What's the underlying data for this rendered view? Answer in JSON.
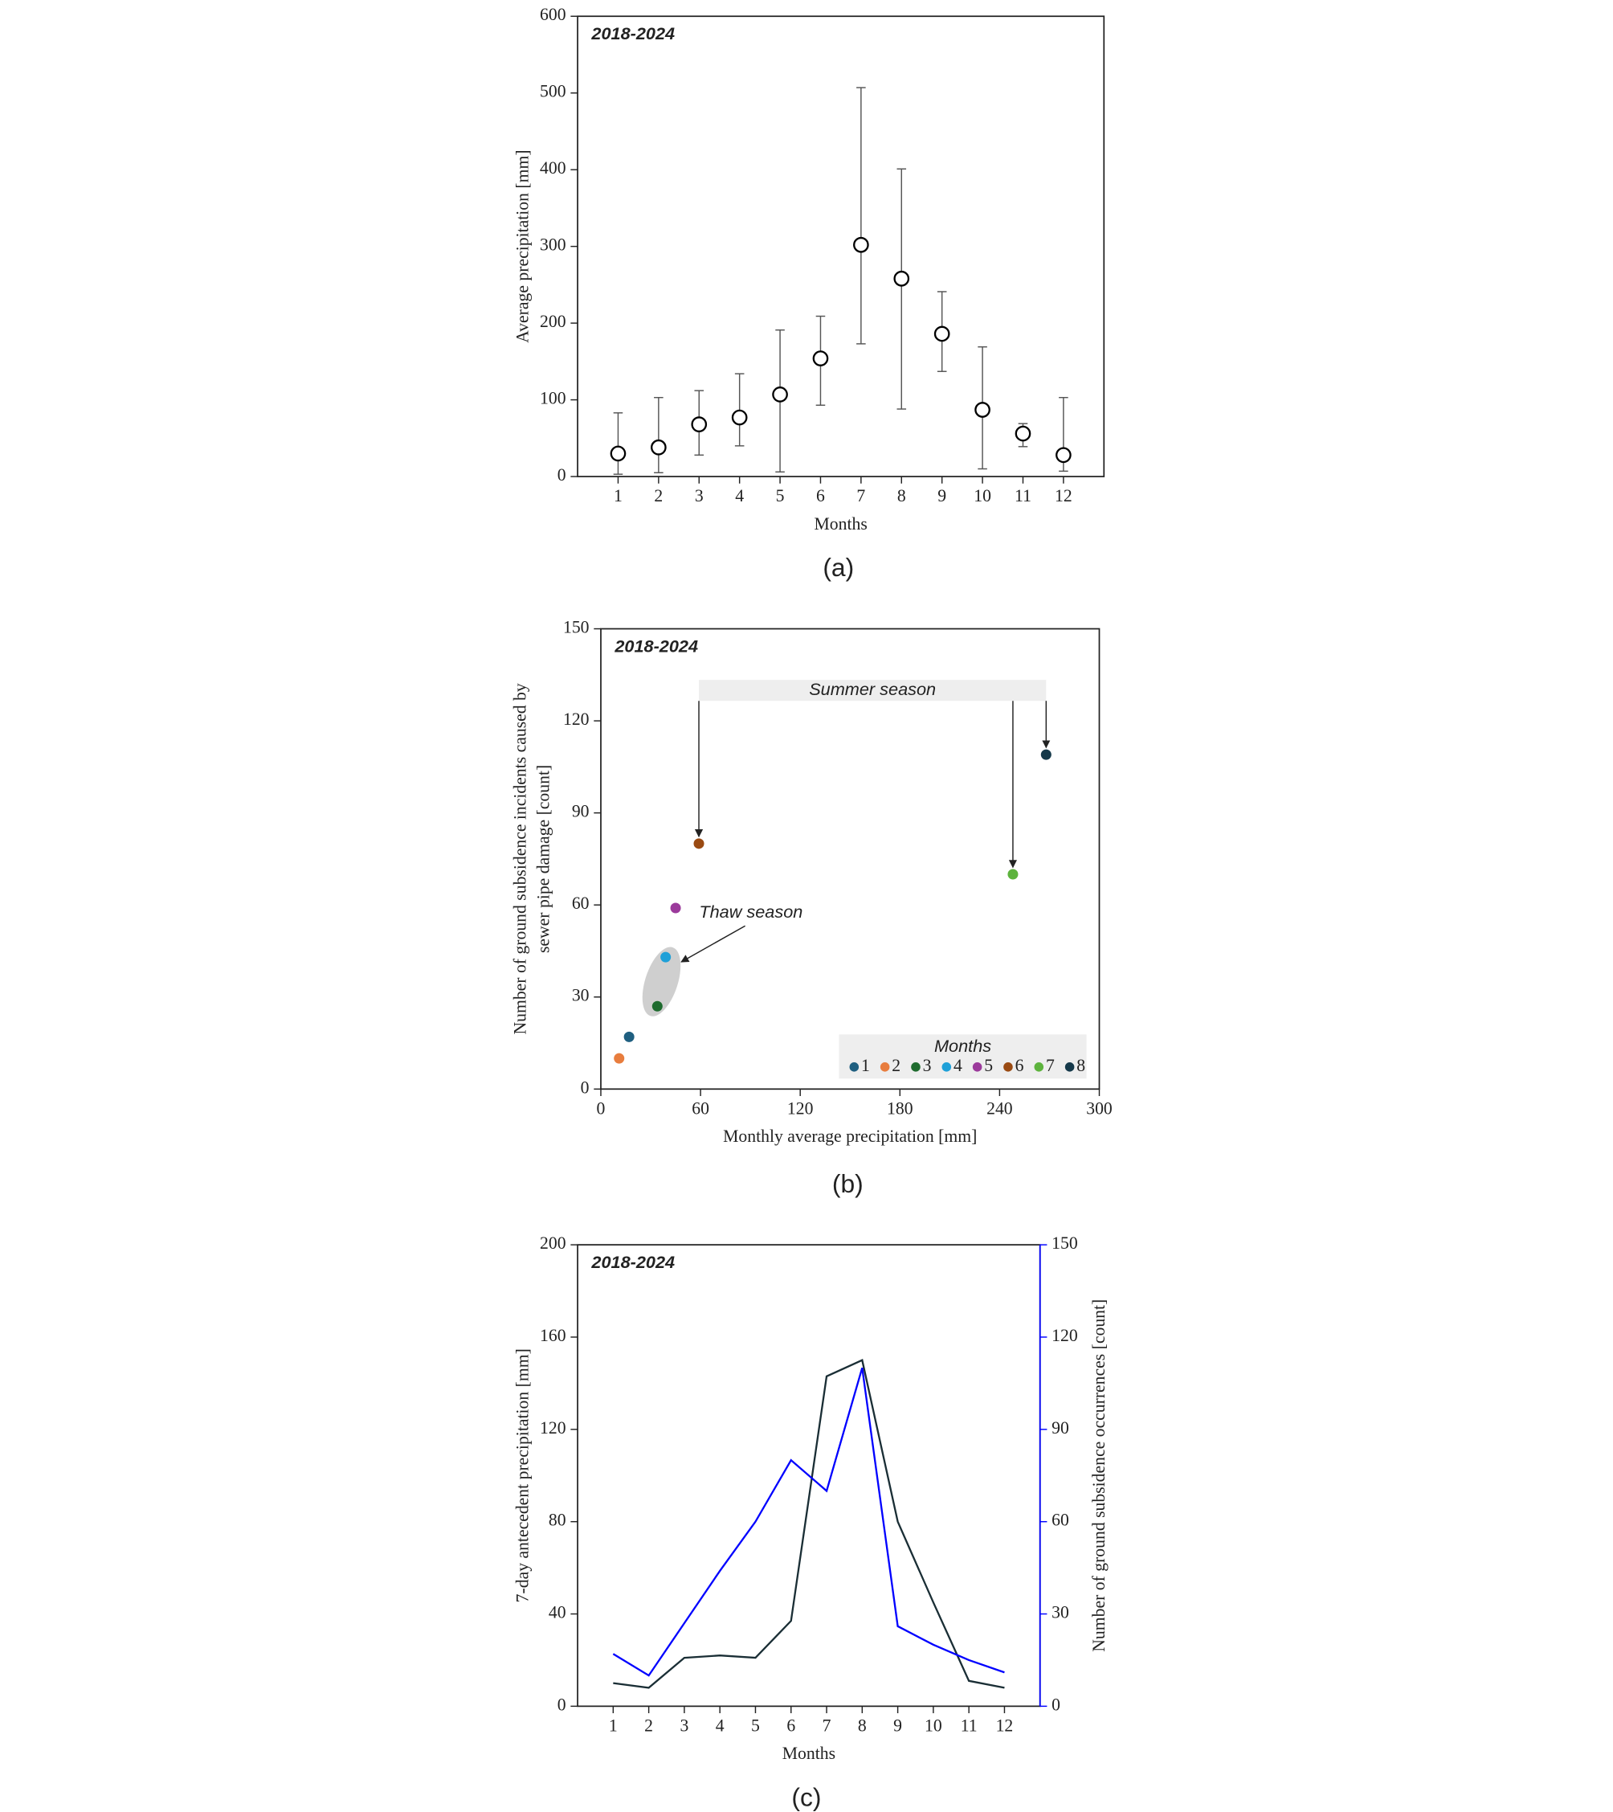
{
  "chart_data": [
    {
      "type": "errorbar",
      "annotation": "2018-2024",
      "xlabel": "Months",
      "ylabel": "Average precipitation [mm]",
      "caption": "(a)",
      "x": [
        1,
        2,
        3,
        4,
        5,
        6,
        7,
        8,
        9,
        10,
        11,
        12
      ],
      "values": [
        30,
        38,
        68,
        77,
        107,
        154,
        302,
        258,
        186,
        87,
        56,
        28
      ],
      "lower": [
        3,
        5,
        28,
        40,
        6,
        93,
        173,
        88,
        137,
        10,
        39,
        7
      ],
      "upper": [
        83,
        103,
        112,
        134,
        191,
        209,
        507,
        401,
        241,
        169,
        69,
        103
      ],
      "color": "#000000",
      "xlim": [
        0,
        13
      ],
      "xticks": [
        1,
        2,
        3,
        4,
        5,
        6,
        7,
        8,
        9,
        10,
        11,
        12
      ],
      "ylim": [
        0,
        600
      ],
      "yticks": [
        0,
        100,
        200,
        300,
        400,
        500,
        600
      ]
    },
    {
      "type": "scatter",
      "annotation": "2018-2024",
      "xlabel": "Monthly average precipitation [mm]",
      "ylabel": [
        "Number of ground subsidence incidents caused by",
        "sewer pipe damage [count]"
      ],
      "caption": "(b)",
      "summer_label": "Summer season",
      "thaw_label": "Thaw season",
      "legend_title": "Months",
      "legend": "lower right",
      "series": [
        {
          "name": "1",
          "color": "#1f5f80",
          "x": 17,
          "y": 17
        },
        {
          "name": "2",
          "color": "#e87d3e",
          "x": 11,
          "y": 10
        },
        {
          "name": "3",
          "color": "#1e6b2e",
          "x": 34,
          "y": 27
        },
        {
          "name": "4",
          "color": "#1ea0d8",
          "x": 39,
          "y": 43
        },
        {
          "name": "5",
          "color": "#9b3a9b",
          "x": 45,
          "y": 59
        },
        {
          "name": "6",
          "color": "#9a4a12",
          "x": 59,
          "y": 80
        },
        {
          "name": "7",
          "color": "#5db33d",
          "x": 248,
          "y": 70
        },
        {
          "name": "8",
          "color": "#15394a",
          "x": 268,
          "y": 109
        }
      ],
      "xlim": [
        0,
        300
      ],
      "xticks": [
        0,
        60,
        120,
        180,
        240,
        300
      ],
      "ylim": [
        0,
        150
      ],
      "yticks": [
        0,
        30,
        60,
        90,
        120,
        150
      ]
    },
    {
      "type": "line",
      "annotation": "2018-2024",
      "xlabel": "Months",
      "ylabel": "7-day antecedent precipitation [mm]",
      "y2label": "Number of ground subsidence occurrences [count]",
      "caption": "(c)",
      "x": [
        1,
        2,
        3,
        4,
        5,
        6,
        7,
        8,
        9,
        10,
        11,
        12
      ],
      "series": [
        {
          "color": "#1a2e35",
          "values": [
            10,
            8,
            21,
            22,
            21,
            37,
            143,
            150,
            80,
            45,
            11,
            8
          ]
        },
        {
          "color": "#0000ff",
          "axis": "y2",
          "values": [
            17,
            10,
            27,
            44,
            60,
            80,
            70,
            110,
            26,
            20,
            15,
            11
          ]
        }
      ],
      "xlim": [
        0,
        13
      ],
      "xticks": [
        1,
        2,
        3,
        4,
        5,
        6,
        7,
        8,
        9,
        10,
        11,
        12
      ],
      "ylim": [
        0,
        200
      ],
      "yticks": [
        0,
        40,
        80,
        120,
        160,
        200
      ],
      "y2lim": [
        0,
        150
      ],
      "y2ticks": [
        0,
        30,
        60,
        90,
        120,
        150
      ]
    }
  ]
}
